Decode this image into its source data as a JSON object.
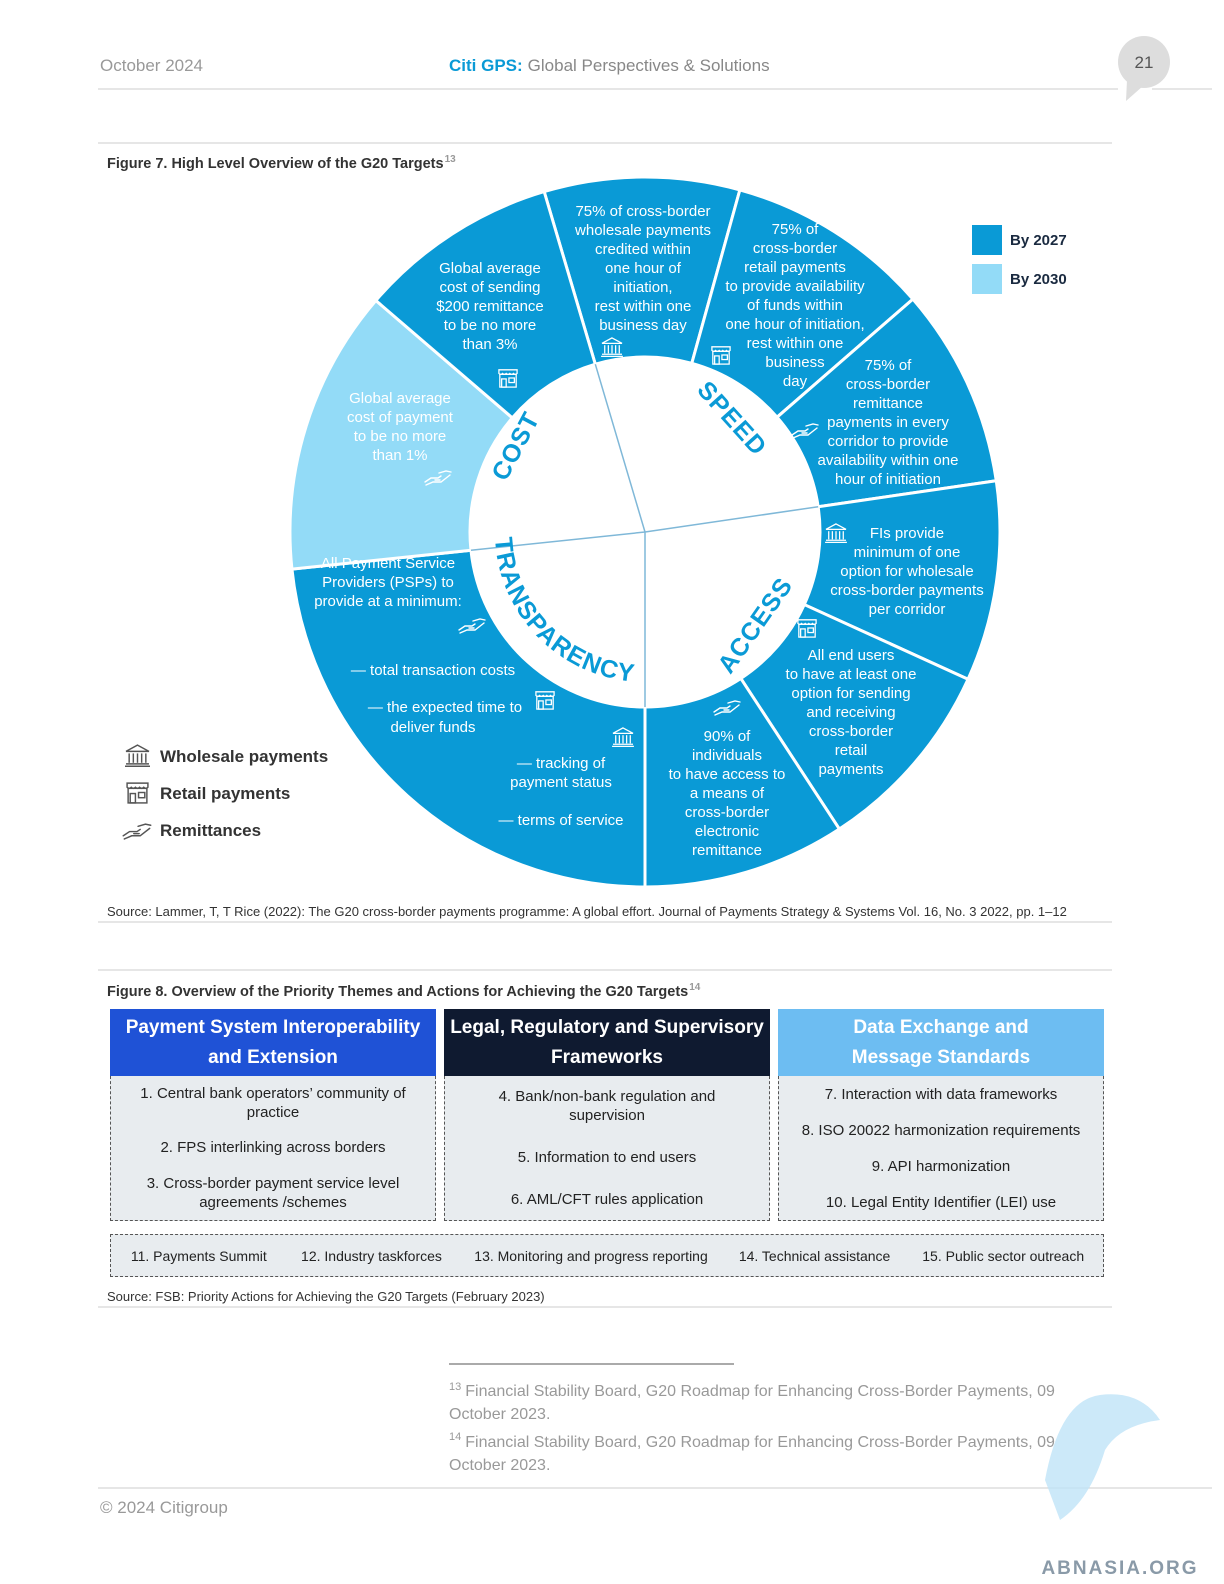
{
  "header": {
    "date": "October 2024",
    "brand": "Citi GPS:",
    "publication": "Global Perspectives & Solutions",
    "page": "21"
  },
  "figure7": {
    "title": "Figure 7. High Level Overview of the G20 Targets",
    "note_ref": "13",
    "legend": [
      "By 2027",
      "By 2030"
    ],
    "icon_legend": [
      "Wholesale payments",
      "Retail payments",
      "Remittances"
    ],
    "themes": [
      "COST",
      "SPEED",
      "ACCESS",
      "TRANSPARENCY"
    ],
    "segments": [
      [
        "75% of cross-border",
        "wholesale  payments",
        "credited within",
        "one hour of",
        "initiation,",
        "rest within one",
        "business day"
      ],
      [
        "75% of",
        "cross-border",
        "retail payments",
        "to provide availability",
        "of funds within",
        "one hour of initiation,",
        "rest within one",
        "business",
        "day"
      ],
      [
        "75% of",
        "cross-border",
        "remittance",
        "payments in every",
        "corridor to provide",
        "availability within one",
        "hour of initiation"
      ],
      [
        "FIs provide",
        "minimum of one",
        "option for wholesale",
        "cross-border payments",
        "per corridor"
      ],
      [
        "All end users",
        "to have at least one",
        "option for sending",
        "and receiving",
        "cross-border",
        "retail",
        "payments"
      ],
      [
        "90% of",
        "individuals",
        "to have access to",
        "a means of",
        "cross-border",
        "electronic",
        "remittance"
      ],
      [
        "All Payment Service",
        "Providers (PSPs) to",
        "provide at a minimum:",
        "— total transaction costs",
        "— the expected time to",
        "deliver funds",
        "— tracking of",
        "payment status",
        "— terms of service"
      ],
      [
        "Global average",
        "cost of payment",
        "to be no more",
        "than 1%"
      ],
      [
        "Global average",
        "cost of sending",
        "$200 remittance",
        "to be no more",
        "than 3%"
      ]
    ],
    "source": "Source: Lammer, T, T Rice (2022): The G20 cross-border payments programme: A global effort. Journal of Payments Strategy & Systems Vol. 16, No. 3 2022, pp. 1–12"
  },
  "figure8": {
    "title": "Figure 8. Overview of the Priority Themes and Actions for Achieving the G20 Targets",
    "note_ref": "14",
    "columns": [
      {
        "header": [
          "Payment System Interoperability",
          "and Extension"
        ],
        "items": [
          "1.  Central bank operators’ community of practice",
          "2.  FPS interlinking across borders",
          "3.  Cross-border payment service level agreements /schemes"
        ]
      },
      {
        "header": [
          "Legal, Regulatory and Supervisory",
          "Frameworks"
        ],
        "items": [
          "4.  Bank/non-bank regulation and supervision",
          "5. Information to end users",
          "6. AML/CFT rules application"
        ]
      },
      {
        "header": [
          "Data Exchange and",
          "Message Standards"
        ],
        "items": [
          "7. Interaction with data frameworks",
          "8. ISO 20022 harmonization requirements",
          "9. API harmonization",
          "10. Legal Entity Identifier (LEI) use"
        ]
      }
    ],
    "cross_cutting": [
      "11. Payments Summit",
      "12. Industry taskforces",
      "13. Monitoring and progress reporting",
      "14. Technical assistance",
      "15. Public sector outreach"
    ],
    "source": "Source: FSB: Priority Actions for Achieving the G20 Targets (February 2023)"
  },
  "footnotes": [
    {
      "ref": "13",
      "text": "Financial Stability Board, G20 Roadmap for Enhancing Cross-Border Payments, 09 October 2023."
    },
    {
      "ref": "14",
      "text": "Financial Stability Board, G20 Roadmap for Enhancing Cross-Border Payments, 09 October 2023."
    }
  ],
  "footer": "© 2024 Citigroup",
  "watermark": "ABNASIA.ORG"
}
